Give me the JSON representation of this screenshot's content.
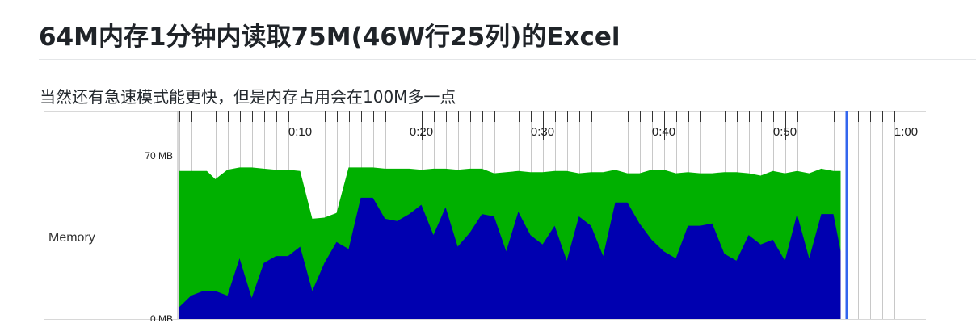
{
  "page": {
    "title": "64M内存1分钟内读取75M(46W行25列)的Excel",
    "subtitle": "当然还有急速模式能更快，但是内存占用会在100M多一点"
  },
  "colors": {
    "total_memory": "#00b000",
    "used_memory": "#0000b0",
    "timeline_marker": "#3366ee",
    "gridline": "#c8c8c8"
  },
  "chart_data": {
    "type": "area",
    "row_label": "Memory",
    "y_tick_labels": [
      "70 MB",
      "0 MB"
    ],
    "ylim": [
      0,
      70
    ],
    "x_tick_labels": [
      "0:10",
      "0:20",
      "0:30",
      "0:40",
      "0:50",
      "1:00"
    ],
    "x_unit": "seconds",
    "xlim": [
      0,
      61
    ],
    "marker_time": 55.1,
    "series": [
      {
        "key": "total",
        "x": [
          0,
          2.3,
          3,
          4,
          5,
          6,
          7,
          8,
          9,
          10,
          11,
          12,
          13,
          14,
          15,
          16,
          17,
          18,
          19,
          20,
          21,
          22,
          23,
          24,
          25,
          26,
          27,
          28,
          29,
          30,
          31,
          32,
          33,
          34,
          35,
          36,
          37,
          38,
          39,
          40,
          41,
          42,
          43,
          44,
          45,
          46,
          47,
          48,
          49,
          50,
          51,
          52,
          53,
          54,
          54.6
        ],
        "values": [
          63.5,
          63.5,
          60,
          64,
          65,
          65,
          64.5,
          64,
          64,
          63.5,
          43,
          43.5,
          45.5,
          65,
          65,
          65,
          64.5,
          64.5,
          64.5,
          64,
          64.5,
          64.5,
          64,
          64.5,
          64.5,
          62.5,
          63,
          63.5,
          63,
          63,
          63.5,
          63.5,
          62.5,
          63,
          63,
          64,
          62.5,
          62.5,
          64,
          64,
          62.5,
          63,
          62.5,
          62.5,
          63,
          63,
          62.5,
          61.5,
          63.5,
          62.5,
          63.5,
          62.5,
          64.5,
          63.5,
          63.5
        ]
      },
      {
        "key": "used",
        "x": [
          0,
          1,
          2,
          3,
          4,
          5,
          6,
          7,
          8,
          9,
          10,
          11,
          12,
          13,
          14,
          15,
          16,
          17,
          18,
          19,
          20,
          21,
          22,
          23,
          24,
          25,
          26,
          27,
          28,
          29,
          30,
          31,
          32,
          33,
          34,
          35,
          36,
          37,
          38,
          39,
          40,
          41,
          42,
          43,
          44,
          45,
          46,
          47,
          48,
          49,
          50,
          51,
          52,
          53,
          54,
          54.6
        ],
        "values": [
          5,
          10,
          12,
          12,
          10,
          26,
          9,
          24,
          27,
          27,
          31,
          12,
          24,
          33,
          30,
          52,
          52,
          43,
          42,
          45,
          49,
          36,
          48,
          31,
          37,
          45,
          44,
          29,
          46,
          36,
          32,
          40,
          25,
          44,
          40,
          27,
          50,
          50,
          41,
          34,
          29,
          26,
          40,
          40,
          41,
          28,
          25,
          36,
          32,
          34,
          25,
          45,
          26,
          45,
          45,
          29
        ]
      }
    ]
  }
}
